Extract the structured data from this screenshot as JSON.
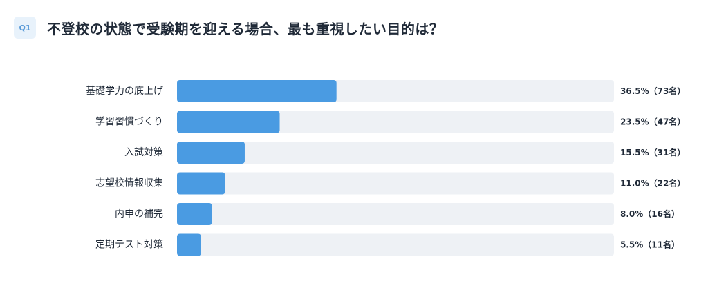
{
  "question": {
    "badge": "Q1",
    "title": "不登校の状態で受験期を迎える場合、最も重視したい目的は？"
  },
  "colors": {
    "bar": "#4a9be2",
    "track": "#eef1f5",
    "badge_bg": "#e8f2fb",
    "badge_text": "#5a9bd8",
    "text": "#1f2937"
  },
  "chart_data": {
    "type": "bar",
    "orientation": "horizontal",
    "categories": [
      "基礎学力の底上げ",
      "学習習慣づくり",
      "入試対策",
      "志望校情報収集",
      "内申の補完",
      "定期テスト対策"
    ],
    "values": [
      36.5,
      23.5,
      15.5,
      11.0,
      8.0,
      5.5
    ],
    "counts": [
      73,
      47,
      31,
      22,
      16,
      11
    ],
    "value_labels": [
      "36.5%（73名）",
      "23.5%（47名）",
      "15.5%（31名）",
      "11.0%（22名）",
      "8.0%（16名）",
      "5.5%（11名）"
    ],
    "xlim": [
      0,
      100
    ],
    "unit": "%",
    "grid": false,
    "legend": "none"
  }
}
